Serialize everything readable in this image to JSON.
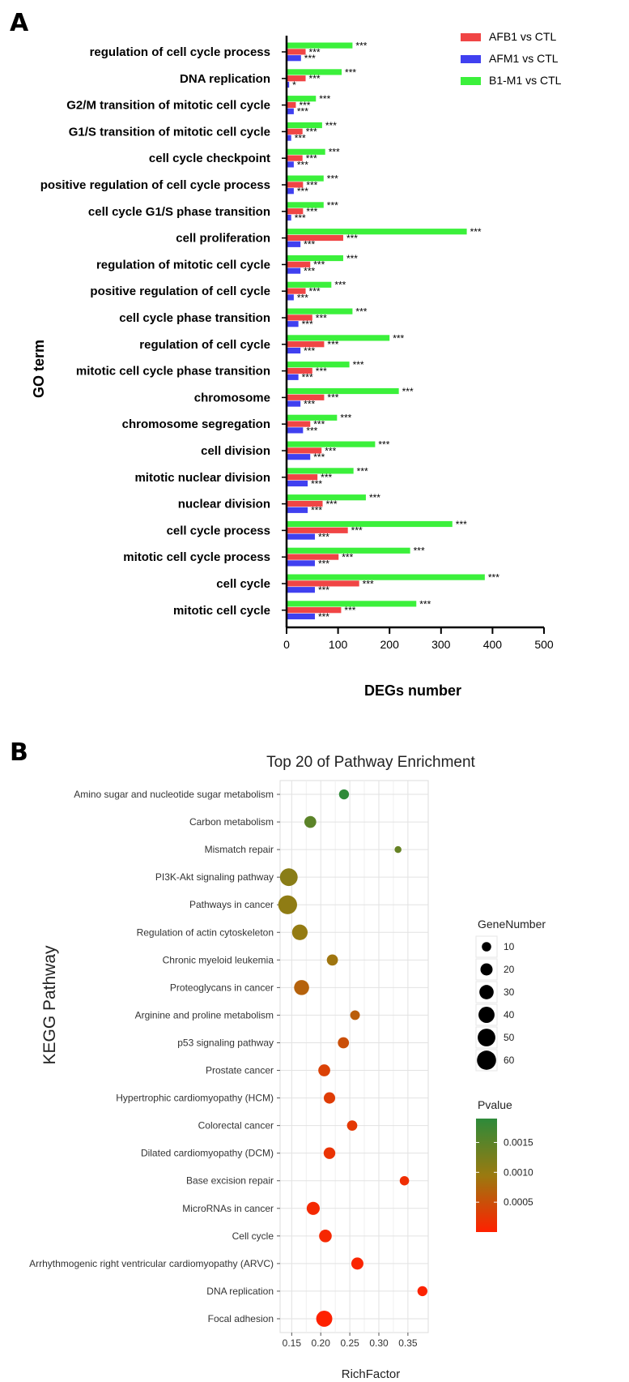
{
  "chart_data": [
    {
      "panel": "A",
      "type": "bar",
      "orientation": "horizontal",
      "title": "",
      "xlabel": "DEGs number",
      "ylabel": "GO term",
      "xlim": [
        0,
        500
      ],
      "xticks": [
        0,
        100,
        200,
        300,
        400,
        500
      ],
      "categories": [
        "regulation of cell cycle process",
        "DNA replication",
        "G2/M transition of mitotic cell cycle",
        "G1/S transition of mitotic cell cycle",
        "cell cycle checkpoint",
        "positive regulation of cell cycle process",
        "cell cycle G1/S phase transition",
        "cell proliferation",
        "regulation of mitotic cell cycle",
        "positive regulation of cell cycle",
        "cell cycle phase transition",
        "regulation of cell cycle",
        "mitotic cell cycle phase transition",
        "chromosome",
        "chromosome segregation",
        "cell division",
        "mitotic nuclear division",
        "nuclear division",
        "cell cycle process",
        "mitotic cell cycle process",
        "cell cycle",
        "mitotic cell cycle"
      ],
      "series": [
        {
          "name": "B1-M1 vs CTL",
          "color": "#3bf03b",
          "values": [
            128,
            107,
            57,
            69,
            75,
            72,
            72,
            350,
            110,
            87,
            128,
            200,
            122,
            218,
            98,
            172,
            130,
            154,
            322,
            240,
            385,
            252
          ],
          "significance": [
            "***",
            "***",
            "***",
            "***",
            "***",
            "***",
            "***",
            "***",
            "***",
            "***",
            "***",
            "***",
            "***",
            "***",
            "***",
            "***",
            "***",
            "***",
            "***",
            "***",
            "***",
            "***"
          ]
        },
        {
          "name": "AFB1 vs CTL",
          "color": "#f04545",
          "values": [
            37,
            37,
            18,
            31,
            31,
            32,
            32,
            110,
            46,
            37,
            50,
            73,
            50,
            73,
            46,
            68,
            60,
            70,
            119,
            101,
            141,
            106
          ],
          "significance": [
            "***",
            "***",
            "***",
            "***",
            "***",
            "***",
            "***",
            "***",
            "***",
            "***",
            "***",
            "***",
            "***",
            "***",
            "***",
            "***",
            "***",
            "***",
            "***",
            "***",
            "***",
            "***"
          ]
        },
        {
          "name": "AFM1 vs CTL",
          "color": "#4040f0",
          "values": [
            28,
            5,
            14,
            9,
            14,
            14,
            9,
            27,
            27,
            14,
            23,
            27,
            23,
            27,
            32,
            46,
            41,
            41,
            55,
            55,
            55,
            55
          ],
          "significance": [
            "***",
            "*",
            "***",
            "***",
            "***",
            "***",
            "***",
            "***",
            "***",
            "***",
            "***",
            "***",
            "***",
            "***",
            "***",
            "***",
            "***",
            "***",
            "***",
            "***",
            "***",
            "***"
          ]
        }
      ],
      "legend": [
        "AFB1 vs CTL",
        "AFM1 vs CTL",
        "B1-M1 vs CTL"
      ],
      "legend_position": "top-right"
    },
    {
      "panel": "B",
      "type": "scatter",
      "title": "Top 20 of Pathway Enrichment",
      "xlabel": "RichFactor",
      "ylabel": "KEGG Pathway",
      "xlim": [
        0.13,
        0.385
      ],
      "xticks": [
        0.15,
        0.2,
        0.25,
        0.3,
        0.35
      ],
      "xtick_labels": [
        "0.15",
        "0.20",
        "0.25",
        "0.30",
        "0.35"
      ],
      "grid": true,
      "points": [
        {
          "pathway": "Amino sugar and nucleotide sugar metabolism",
          "rich_factor": 0.24,
          "gene_number": 12,
          "pvalue": 0.00188
        },
        {
          "pathway": "Carbon metabolism",
          "rich_factor": 0.182,
          "gene_number": 19,
          "pvalue": 0.0015
        },
        {
          "pathway": "Mismatch repair",
          "rich_factor": 0.333,
          "gene_number": 4,
          "pvalue": 0.0014
        },
        {
          "pathway": "PI3K-Akt signaling pathway",
          "rich_factor": 0.145,
          "gene_number": 50,
          "pvalue": 0.0011
        },
        {
          "pathway": "Pathways in cancer",
          "rich_factor": 0.143,
          "gene_number": 58,
          "pvalue": 0.00105
        },
        {
          "pathway": "Regulation of actin cytoskeleton",
          "rich_factor": 0.164,
          "gene_number": 37,
          "pvalue": 0.001
        },
        {
          "pathway": "Chronic myeloid leukemia",
          "rich_factor": 0.22,
          "gene_number": 16,
          "pvalue": 0.0009
        },
        {
          "pathway": "Proteoglycans in cancer",
          "rich_factor": 0.167,
          "gene_number": 34,
          "pvalue": 0.0007
        },
        {
          "pathway": "Arginine and proline metabolism",
          "rich_factor": 0.259,
          "gene_number": 11,
          "pvalue": 0.00065
        },
        {
          "pathway": "p53 signaling pathway",
          "rich_factor": 0.239,
          "gene_number": 16,
          "pvalue": 0.0005
        },
        {
          "pathway": "Prostate cancer",
          "rich_factor": 0.206,
          "gene_number": 19,
          "pvalue": 0.00035
        },
        {
          "pathway": "Hypertrophic cardiomyopathy (HCM)",
          "rich_factor": 0.215,
          "gene_number": 17,
          "pvalue": 0.0003
        },
        {
          "pathway": "Colorectal cancer",
          "rich_factor": 0.254,
          "gene_number": 13,
          "pvalue": 0.00025
        },
        {
          "pathway": "Dilated cardiomyopathy (DCM)",
          "rich_factor": 0.215,
          "gene_number": 18,
          "pvalue": 0.0002
        },
        {
          "pathway": "Base excision repair",
          "rich_factor": 0.344,
          "gene_number": 10,
          "pvalue": 0.00015
        },
        {
          "pathway": "MicroRNAs in cancer",
          "rich_factor": 0.187,
          "gene_number": 24,
          "pvalue": 0.0001
        },
        {
          "pathway": "Cell cycle",
          "rich_factor": 0.208,
          "gene_number": 22,
          "pvalue": 8e-05
        },
        {
          "pathway": "Arrhythmogenic right ventricular cardiomyopathy (ARVC)",
          "rich_factor": 0.263,
          "gene_number": 20,
          "pvalue": 5e-05
        },
        {
          "pathway": "DNA replication",
          "rich_factor": 0.375,
          "gene_number": 12,
          "pvalue": 3e-05
        },
        {
          "pathway": "Focal adhesion",
          "rich_factor": 0.206,
          "gene_number": 40,
          "pvalue": 1e-05
        }
      ],
      "size_legend": {
        "title": "GeneNumber",
        "values": [
          10,
          20,
          30,
          40,
          50,
          60
        ]
      },
      "color_legend": {
        "title": "Pvalue",
        "ticks": [
          0.0015,
          0.001,
          0.0005
        ],
        "tick_labels": [
          "0.0015",
          "0.0010",
          "0.0005"
        ],
        "range": [
          0.0,
          0.0019
        ],
        "low_color": "#ff2000",
        "mid_color": "#9a7a10",
        "high_color": "#2d8a3a"
      }
    }
  ],
  "panel_labels": {
    "a": "A",
    "b": "B"
  }
}
